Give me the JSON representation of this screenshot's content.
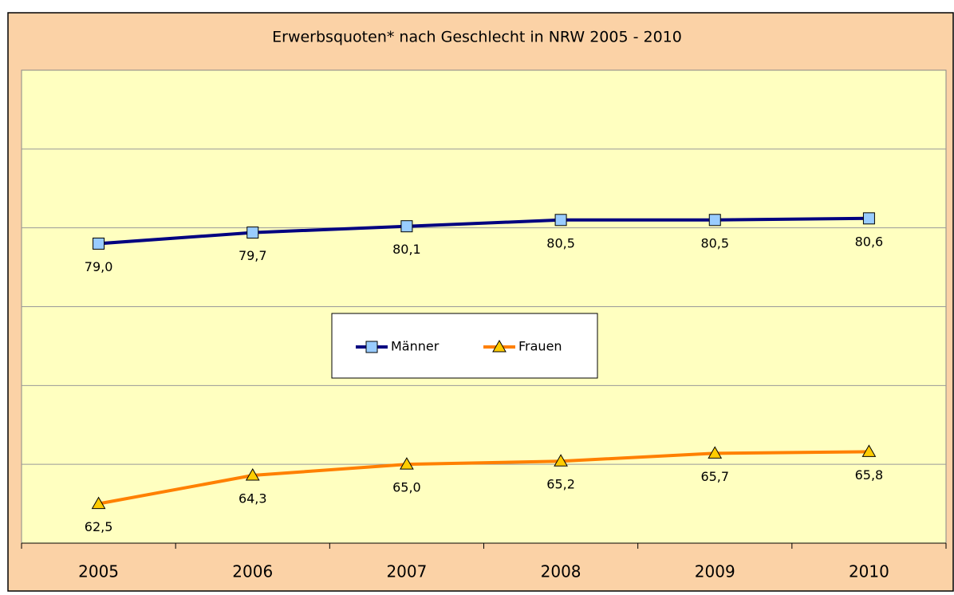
{
  "chart_data": {
    "type": "line",
    "title": "Erwerbsquoten* nach Geschlecht in NRW 2005 - 2010",
    "categories": [
      "2005",
      "2006",
      "2007",
      "2008",
      "2009",
      "2010"
    ],
    "series": [
      {
        "name": "Männer",
        "color": "#000080",
        "marker_color": "#99ccff",
        "marker": "square",
        "values": [
          79.0,
          79.7,
          80.1,
          80.5,
          80.5,
          80.6
        ],
        "value_labels": [
          "79,0",
          "79,7",
          "80,1",
          "80,5",
          "80,5",
          "80,6"
        ]
      },
      {
        "name": "Frauen",
        "color": "#ff8000",
        "marker_color": "#ffcc00",
        "marker": "triangle",
        "values": [
          62.5,
          64.3,
          65.0,
          65.2,
          65.7,
          65.8
        ],
        "value_labels": [
          "62,5",
          "64,3",
          "65,0",
          "65,2",
          "65,7",
          "65,8"
        ]
      }
    ],
    "ylim": [
      60,
      90
    ],
    "yticks": [
      60,
      65,
      70,
      75,
      80,
      85
    ],
    "grid": true
  }
}
